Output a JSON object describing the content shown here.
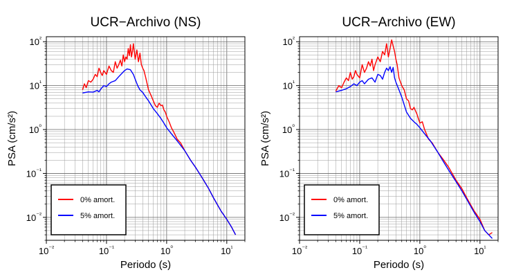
{
  "chart_data": [
    {
      "type": "line",
      "title": "UCR−Archivo (NS)",
      "xlabel": "Periodo (s)",
      "ylabel": "PSA (cm/s²)",
      "xscale": "log",
      "yscale": "log",
      "xlim": [
        0.01,
        20
      ],
      "ylim": [
        0.003,
        130
      ],
      "xticks": [
        "10⁻²",
        "10⁻¹",
        "10⁰",
        "10¹"
      ],
      "yticks": [
        "10⁻²",
        "10⁻¹",
        "10⁰",
        "10¹",
        "10²"
      ],
      "grid": true,
      "legend_position": "bottom-left",
      "series": [
        {
          "name": "0% amort.",
          "color": "#ff0000",
          "x": [
            0.04,
            0.043,
            0.046,
            0.05,
            0.055,
            0.06,
            0.065,
            0.07,
            0.075,
            0.08,
            0.085,
            0.09,
            0.1,
            0.11,
            0.12,
            0.13,
            0.14,
            0.15,
            0.16,
            0.17,
            0.18,
            0.19,
            0.2,
            0.21,
            0.22,
            0.23,
            0.24,
            0.25,
            0.26,
            0.27,
            0.28,
            0.3,
            0.32,
            0.34,
            0.36,
            0.38,
            0.4,
            0.42,
            0.45,
            0.5,
            0.55,
            0.6,
            0.65,
            0.7,
            0.75,
            0.8,
            0.85,
            0.9,
            0.95,
            1.0,
            1.1,
            1.2,
            1.3,
            1.5,
            1.7,
            2.0,
            2.5,
            3,
            4,
            5,
            6,
            8,
            10,
            12,
            14
          ],
          "values": [
            8,
            11,
            9,
            13,
            12,
            14,
            18,
            16,
            25,
            20,
            17,
            22,
            18,
            28,
            22,
            20,
            35,
            25,
            30,
            38,
            28,
            50,
            35,
            45,
            40,
            70,
            48,
            85,
            45,
            60,
            90,
            40,
            65,
            35,
            55,
            30,
            25,
            22,
            15,
            8,
            6,
            4.5,
            3.5,
            3.2,
            4,
            3.5,
            3.6,
            2.8,
            2.5,
            2,
            1.5,
            1.1,
            0.9,
            0.6,
            0.5,
            0.33,
            0.2,
            0.14,
            0.075,
            0.045,
            0.028,
            0.014,
            0.009,
            0.006,
            0.004
          ]
        },
        {
          "name": "5% amort.",
          "color": "#0000ff",
          "x": [
            0.04,
            0.05,
            0.06,
            0.07,
            0.075,
            0.08,
            0.09,
            0.1,
            0.11,
            0.12,
            0.14,
            0.16,
            0.18,
            0.2,
            0.22,
            0.25,
            0.28,
            0.3,
            0.33,
            0.36,
            0.4,
            0.45,
            0.5,
            0.6,
            0.7,
            0.8,
            0.9,
            1.0,
            1.2,
            1.5,
            2,
            2.5,
            3,
            4,
            5,
            6,
            8,
            10,
            12,
            14
          ],
          "values": [
            6.8,
            7.2,
            7.1,
            7.8,
            7.2,
            8.3,
            10,
            9.5,
            11,
            12,
            13,
            16,
            19,
            22,
            24,
            23,
            18,
            14,
            10,
            8,
            7,
            5.5,
            4.5,
            3,
            2.3,
            1.8,
            1.4,
            1.1,
            0.8,
            0.55,
            0.33,
            0.2,
            0.14,
            0.075,
            0.045,
            0.028,
            0.014,
            0.009,
            0.006,
            0.004
          ]
        }
      ]
    },
    {
      "type": "line",
      "title": "UCR−Archivo (EW)",
      "xlabel": "Periodo (s)",
      "ylabel": "PSA (cm/s²)",
      "xscale": "log",
      "yscale": "log",
      "xlim": [
        0.01,
        20
      ],
      "ylim": [
        0.003,
        130
      ],
      "xticks": [
        "10⁻²",
        "10⁻¹",
        "10⁰",
        "10¹"
      ],
      "yticks": [
        "10⁻²",
        "10⁻¹",
        "10⁰",
        "10¹",
        "10²"
      ],
      "grid": true,
      "legend_position": "bottom-left",
      "series": [
        {
          "name": "0% amort.",
          "color": "#ff0000",
          "x": [
            0.04,
            0.045,
            0.05,
            0.055,
            0.06,
            0.065,
            0.07,
            0.075,
            0.08,
            0.085,
            0.09,
            0.1,
            0.11,
            0.12,
            0.13,
            0.14,
            0.15,
            0.16,
            0.17,
            0.18,
            0.2,
            0.22,
            0.24,
            0.26,
            0.28,
            0.3,
            0.32,
            0.34,
            0.36,
            0.38,
            0.4,
            0.42,
            0.45,
            0.5,
            0.55,
            0.6,
            0.65,
            0.7,
            0.75,
            0.8,
            0.9,
            1.0,
            1.1,
            1.2,
            1.4,
            1.6,
            2,
            2.5,
            3,
            4,
            5,
            6,
            8,
            10,
            12,
            14,
            16
          ],
          "values": [
            7.5,
            10,
            9,
            12,
            15,
            13,
            20,
            14,
            16,
            22,
            18,
            15,
            30,
            20,
            25,
            35,
            28,
            40,
            22,
            30,
            45,
            35,
            60,
            50,
            90,
            45,
            70,
            110,
            80,
            60,
            40,
            30,
            15,
            10,
            8,
            5,
            4.5,
            3,
            2.8,
            3.2,
            2.2,
            1.4,
            1.5,
            1.0,
            0.6,
            0.5,
            0.3,
            0.2,
            0.14,
            0.07,
            0.045,
            0.028,
            0.014,
            0.009,
            0.005,
            0.004,
            0.0045
          ]
        },
        {
          "name": "5% amort.",
          "color": "#0000ff",
          "x": [
            0.04,
            0.05,
            0.06,
            0.07,
            0.08,
            0.09,
            0.1,
            0.11,
            0.12,
            0.14,
            0.16,
            0.18,
            0.2,
            0.22,
            0.24,
            0.26,
            0.28,
            0.3,
            0.32,
            0.34,
            0.36,
            0.38,
            0.4,
            0.45,
            0.5,
            0.6,
            0.7,
            0.8,
            0.9,
            1.0,
            1.2,
            1.5,
            2,
            2.5,
            3,
            4,
            5,
            6,
            8,
            10,
            12,
            14,
            16
          ],
          "values": [
            7.2,
            7.8,
            8.5,
            9.5,
            11,
            10,
            12,
            13,
            11,
            14,
            15,
            12,
            18,
            17,
            14,
            20,
            25,
            22,
            27,
            20,
            26,
            15,
            12,
            8,
            5.5,
            2.5,
            1.8,
            1.5,
            1.3,
            1.1,
            0.8,
            0.55,
            0.3,
            0.18,
            0.12,
            0.065,
            0.04,
            0.026,
            0.013,
            0.008,
            0.005,
            0.004,
            0.0033
          ]
        }
      ]
    }
  ]
}
